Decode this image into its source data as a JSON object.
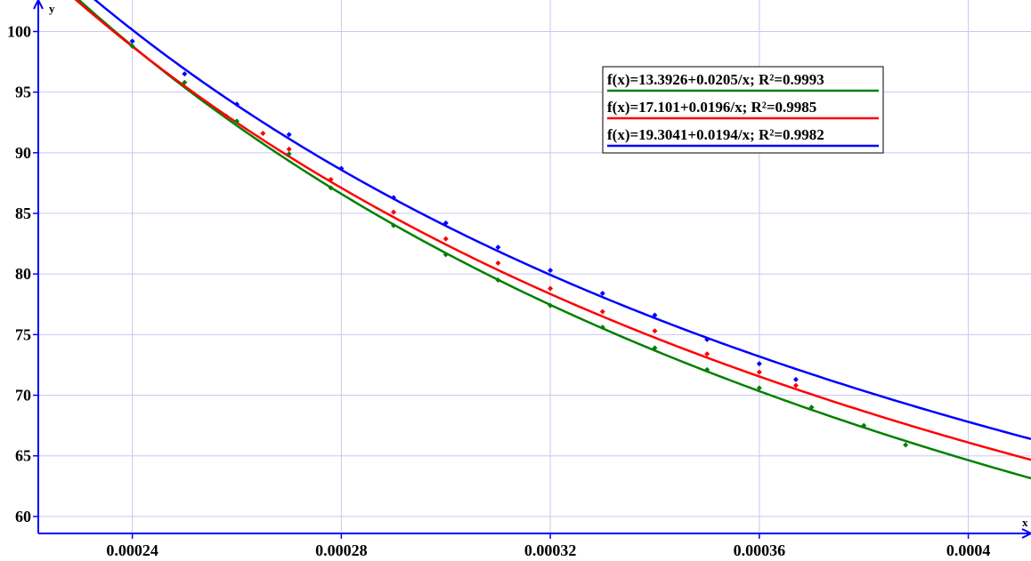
{
  "chart_data": {
    "type": "scatter",
    "xlabel": "x",
    "ylabel": "y",
    "xlim": [
      0.000222,
      0.000412
    ],
    "ylim": [
      58.6,
      102.6
    ],
    "grid": true,
    "x_ticks": [
      {
        "value": 0.00024,
        "label": "0.00024"
      },
      {
        "value": 0.00028,
        "label": "0.00028"
      },
      {
        "value": 0.00032,
        "label": "0.00032"
      },
      {
        "value": 0.00036,
        "label": "0.00036"
      },
      {
        "value": 0.0004,
        "label": "0.0004"
      }
    ],
    "y_ticks": [
      {
        "value": 60,
        "label": "60"
      },
      {
        "value": 65,
        "label": "65"
      },
      {
        "value": 70,
        "label": "70"
      },
      {
        "value": 75,
        "label": "75"
      },
      {
        "value": 80,
        "label": "80"
      },
      {
        "value": 85,
        "label": "85"
      },
      {
        "value": 90,
        "label": "90"
      },
      {
        "value": 95,
        "label": "95"
      },
      {
        "value": 100,
        "label": "100"
      }
    ],
    "legend_position": "top-right",
    "series": [
      {
        "label": "f(x)=13.3926+0.0205/x; R²=0.9993",
        "color": "#008000",
        "fit": {
          "a": 13.3926,
          "b": 0.0205
        },
        "points": [
          [
            0.00024,
            98.8
          ],
          [
            0.00025,
            95.8
          ],
          [
            0.00026,
            92.6
          ],
          [
            0.00027,
            89.9
          ],
          [
            0.000278,
            87.1
          ],
          [
            0.00029,
            84.0
          ],
          [
            0.0003,
            81.6
          ],
          [
            0.00031,
            79.5
          ],
          [
            0.00032,
            77.4
          ],
          [
            0.00033,
            75.6
          ],
          [
            0.00034,
            73.9
          ],
          [
            0.00035,
            72.1
          ],
          [
            0.00036,
            70.6
          ],
          [
            0.00037,
            69.0
          ],
          [
            0.00038,
            67.5
          ],
          [
            0.000388,
            65.9
          ]
        ]
      },
      {
        "label": "f(x)=17.101+0.0196/x; R²=0.9985",
        "color": "#ff0000",
        "fit": {
          "a": 17.101,
          "b": 0.0196
        },
        "points": [
          [
            0.000258,
            93.0
          ],
          [
            0.000265,
            91.6
          ],
          [
            0.00027,
            90.3
          ],
          [
            0.000278,
            87.8
          ],
          [
            0.00029,
            85.1
          ],
          [
            0.0003,
            82.9
          ],
          [
            0.00031,
            80.9
          ],
          [
            0.00032,
            78.8
          ],
          [
            0.00033,
            76.9
          ],
          [
            0.00034,
            75.3
          ],
          [
            0.00035,
            73.4
          ],
          [
            0.00036,
            71.9
          ],
          [
            0.000367,
            70.8
          ]
        ]
      },
      {
        "label": "f(x)=19.3041+0.0194/x; R²=0.9982",
        "color": "#0000ff",
        "fit": {
          "a": 19.3041,
          "b": 0.0194
        },
        "points": [
          [
            0.00024,
            99.2
          ],
          [
            0.00025,
            96.5
          ],
          [
            0.00026,
            94.0
          ],
          [
            0.00027,
            91.5
          ],
          [
            0.00028,
            88.7
          ],
          [
            0.00029,
            86.3
          ],
          [
            0.0003,
            84.2
          ],
          [
            0.00031,
            82.2
          ],
          [
            0.00032,
            80.3
          ],
          [
            0.00033,
            78.4
          ],
          [
            0.00034,
            76.6
          ],
          [
            0.00035,
            74.6
          ],
          [
            0.00036,
            72.6
          ],
          [
            0.000367,
            71.3
          ]
        ]
      }
    ]
  }
}
